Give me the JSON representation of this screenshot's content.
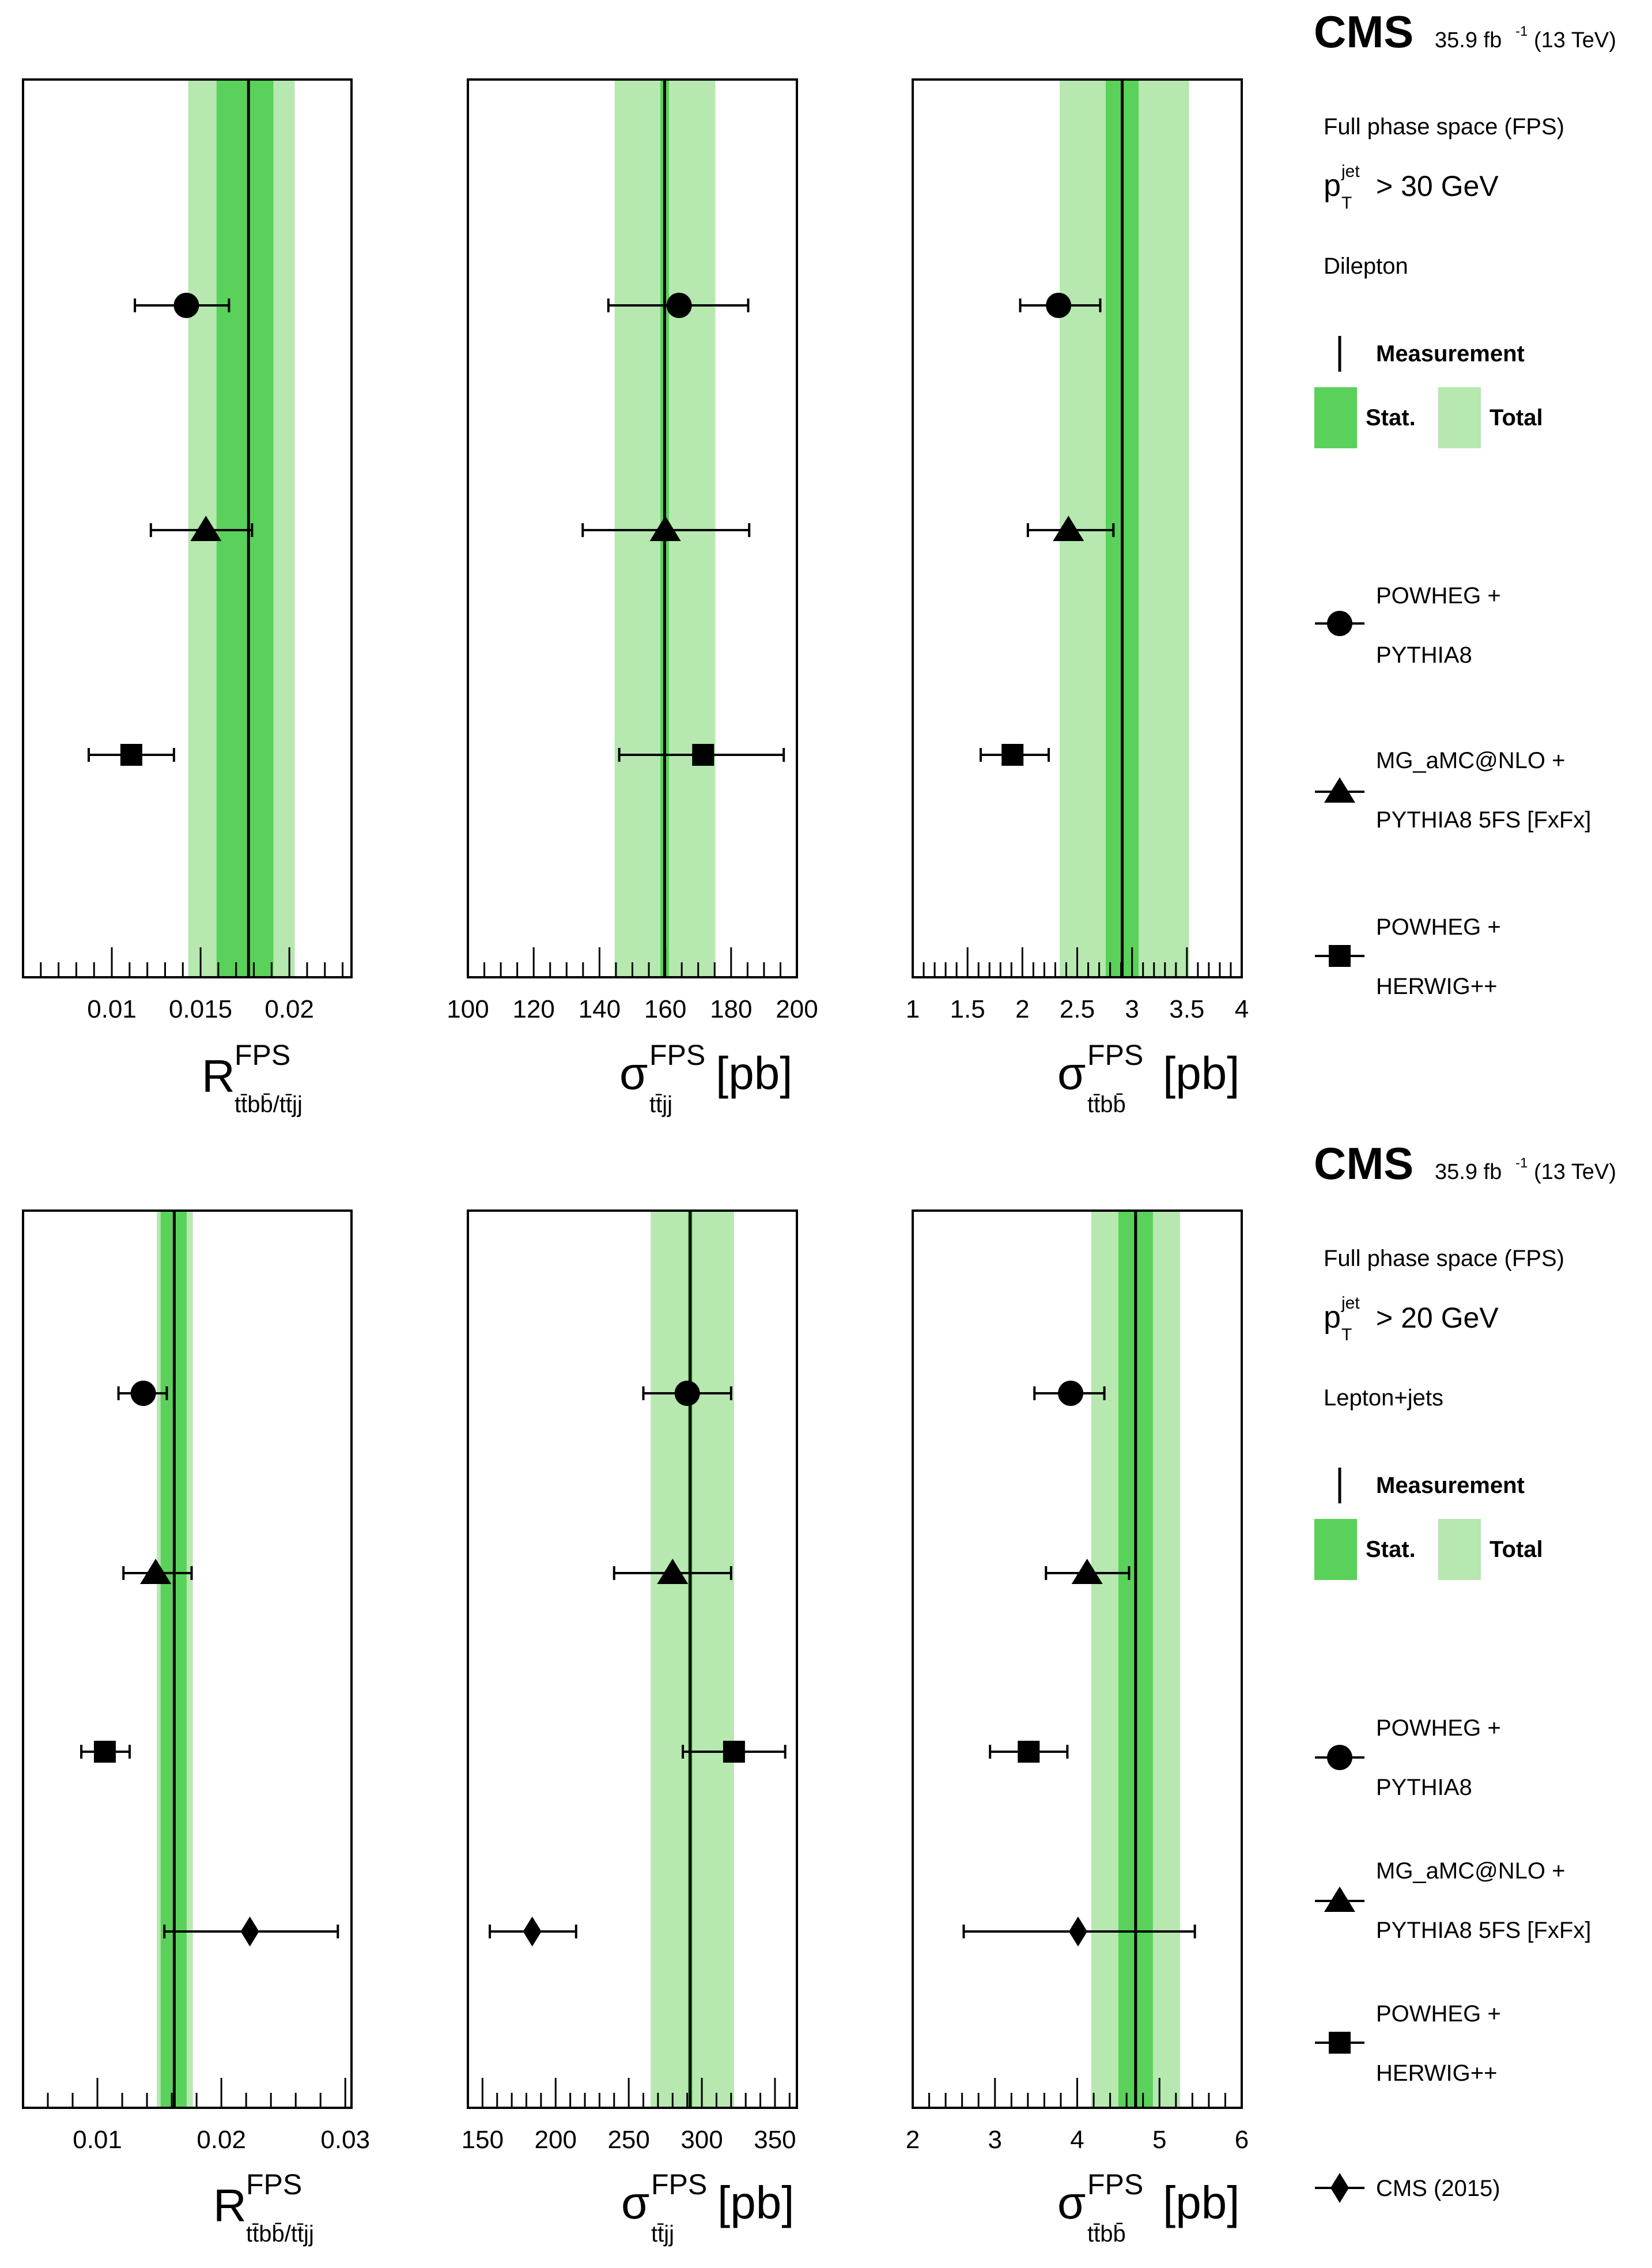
{
  "colors": {
    "stat_band": "#5ad15a",
    "total_band": "#b6e8b0",
    "ink": "#000000"
  },
  "legend_common": {
    "phase_space": "Full phase space (FPS)",
    "pt_symbol": "p",
    "pt_sup": "jet",
    "pt_sub": "T",
    "measurement": "Measurement",
    "stat": "Stat.",
    "total": "Total",
    "powheg_pythia_l1": "POWHEG +",
    "powheg_pythia_l2": "PYTHIA8",
    "mg_l1": "MG_aMC@NLO +",
    "mg_l2": "PYTHIA8 5FS [FxFx]",
    "powheg_herwig_l1": "POWHEG +",
    "powheg_herwig_l2": "HERWIG++",
    "cms2015": "CMS (2015)"
  },
  "top": {
    "cms": "CMS",
    "lumi": "35.9 fb",
    "lumi_exp": "-1",
    "energy": "(13 TeV)",
    "pt_cut": "> 30 GeV",
    "channel": "Dilepton"
  },
  "bottom": {
    "cms": "CMS",
    "lumi": "35.9 fb",
    "lumi_exp": "-1",
    "energy": "(13 TeV)",
    "pt_cut": "> 20 GeV",
    "channel": "Lepton+jets"
  },
  "axis_titles": {
    "ratio_main": "R",
    "sigma_main": "σ",
    "sup": "FPS",
    "ratio_sub": "tt̄bb̄/tt̄jj",
    "sigma_ttjj_sub": "tt̄jj",
    "sigma_ttbb_sub": "tt̄bb̄",
    "unit": "[pb]"
  },
  "chart_data": [
    {
      "id": "top-ratio",
      "type": "scatter",
      "title": "Dilepton R ttbb/ttjj",
      "xlim": [
        0.005,
        0.0235
      ],
      "major_ticks": [
        0.01,
        0.015,
        0.02
      ],
      "minor_step": 0.001,
      "tick_labels": [
        "0.01",
        "0.015",
        "0.02"
      ],
      "measurement": 0.0177,
      "stat": [
        0.0159,
        0.0191
      ],
      "total": [
        0.0143,
        0.0203
      ],
      "points": [
        {
          "name": "POWHEG + PYTHIA8",
          "marker": "circle",
          "value": 0.0142,
          "err": [
            0.0113,
            0.0166
          ]
        },
        {
          "name": "MG_aMC@NLO + PYTHIA8 5FS [FxFx]",
          "marker": "triangle",
          "value": 0.0153,
          "err": [
            0.0122,
            0.0179
          ]
        },
        {
          "name": "POWHEG + HERWIG++",
          "marker": "square",
          "value": 0.0111,
          "err": [
            0.0087,
            0.0135
          ]
        }
      ]
    },
    {
      "id": "top-ttjj",
      "type": "scatter",
      "title": "Dilepton sigma ttjj",
      "xlim": [
        100,
        200
      ],
      "major_ticks": [
        100,
        120,
        140,
        160,
        180,
        200
      ],
      "minor_step": 5,
      "tick_labels": [
        "100",
        "120",
        "140",
        "160",
        "180",
        "200"
      ],
      "measurement": 159.8,
      "stat": [
        158.5,
        161.1
      ],
      "total": [
        144.6,
        175.2
      ],
      "points": [
        {
          "name": "POWHEG + PYTHIA8",
          "marker": "circle",
          "value": 164.2,
          "err": [
            142.7,
            185.2
          ]
        },
        {
          "name": "MG_aMC@NLO + PYTHIA8 5FS [FxFx]",
          "marker": "triangle",
          "value": 160.0,
          "err": [
            134.9,
            185.5
          ]
        },
        {
          "name": "POWHEG + HERWIG++",
          "marker": "square",
          "value": 171.5,
          "err": [
            146.0,
            196.0
          ]
        }
      ]
    },
    {
      "id": "top-ttbb",
      "type": "scatter",
      "title": "Dilepton sigma ttbb",
      "xlim": [
        1,
        4
      ],
      "major_ticks": [
        1,
        1.5,
        2,
        2.5,
        3,
        3.5,
        4
      ],
      "minor_step": 0.1,
      "tick_labels": [
        "1",
        "1.5",
        "2",
        "2.5",
        "3",
        "3.5",
        "4"
      ],
      "measurement": 2.91,
      "stat": [
        2.76,
        3.06
      ],
      "total": [
        2.34,
        3.52
      ],
      "points": [
        {
          "name": "POWHEG + PYTHIA8",
          "marker": "circle",
          "value": 2.33,
          "err": [
            1.98,
            2.71
          ]
        },
        {
          "name": "MG_aMC@NLO + PYTHIA8 5FS [FxFx]",
          "marker": "triangle",
          "value": 2.42,
          "err": [
            2.05,
            2.83
          ]
        },
        {
          "name": "POWHEG + HERWIG++",
          "marker": "square",
          "value": 1.91,
          "err": [
            1.62,
            2.24
          ]
        }
      ]
    },
    {
      "id": "bot-ratio",
      "type": "scatter",
      "title": "Lepton+jets R ttbb/ttjj",
      "xlim": [
        0.004,
        0.0305
      ],
      "major_ticks": [
        0.01,
        0.02,
        0.03
      ],
      "minor_step": 0.002,
      "tick_labels": [
        "0.01",
        "0.02",
        "0.03"
      ],
      "measurement": 0.0162,
      "stat": [
        0.0151,
        0.0172
      ],
      "total": [
        0.0148,
        0.0177
      ],
      "points": [
        {
          "name": "POWHEG + PYTHIA8",
          "marker": "circle",
          "value": 0.0137,
          "err": [
            0.0117,
            0.0156
          ]
        },
        {
          "name": "MG_aMC@NLO + PYTHIA8 5FS [FxFx]",
          "marker": "triangle",
          "value": 0.0147,
          "err": [
            0.0121,
            0.0176
          ]
        },
        {
          "name": "POWHEG + HERWIG++",
          "marker": "square",
          "value": 0.0106,
          "err": [
            0.0087,
            0.0126
          ]
        },
        {
          "name": "CMS (2015)",
          "marker": "diamond",
          "value": 0.0223,
          "err": [
            0.0154,
            0.0294
          ]
        }
      ]
    },
    {
      "id": "bot-ttjj",
      "type": "scatter",
      "title": "Lepton+jets sigma ttjj",
      "xlim": [
        140,
        365
      ],
      "major_ticks": [
        150,
        200,
        250,
        300,
        350
      ],
      "minor_step": 10,
      "tick_labels": [
        "150",
        "200",
        "250",
        "300",
        "350"
      ],
      "measurement": 292.0,
      "stat": [
        290.5,
        293.5
      ],
      "total": [
        265.0,
        322.0
      ],
      "points": [
        {
          "name": "POWHEG + PYTHIA8",
          "marker": "circle",
          "value": 290.0,
          "err": [
            260.0,
            320.0
          ]
        },
        {
          "name": "MG_aMC@NLO + PYTHIA8 5FS [FxFx]",
          "marker": "triangle",
          "value": 280.0,
          "err": [
            240.0,
            320.0
          ]
        },
        {
          "name": "POWHEG + HERWIG++",
          "marker": "square",
          "value": 322.0,
          "err": [
            287.0,
            357.0
          ]
        },
        {
          "name": "CMS (2015)",
          "marker": "diamond",
          "value": 184.0,
          "err": [
            155.0,
            214.0
          ]
        }
      ]
    },
    {
      "id": "bot-ttbb",
      "type": "scatter",
      "title": "Lepton+jets sigma ttbb",
      "xlim": [
        2,
        6
      ],
      "major_ticks": [
        2,
        3,
        4,
        5,
        6
      ],
      "minor_step": 0.2,
      "tick_labels": [
        "2",
        "3",
        "4",
        "5",
        "6"
      ],
      "measurement": 4.71,
      "stat": [
        4.5,
        4.92
      ],
      "total": [
        4.17,
        5.25
      ],
      "points": [
        {
          "name": "POWHEG + PYTHIA8",
          "marker": "circle",
          "value": 3.92,
          "err": [
            3.48,
            4.33
          ]
        },
        {
          "name": "MG_aMC@NLO + PYTHIA8 5FS [FxFx]",
          "marker": "triangle",
          "value": 4.12,
          "err": [
            3.62,
            4.63
          ]
        },
        {
          "name": "POWHEG + HERWIG++",
          "marker": "square",
          "value": 3.41,
          "err": [
            2.94,
            3.88
          ]
        },
        {
          "name": "CMS (2015)",
          "marker": "diamond",
          "value": 4.01,
          "err": [
            2.62,
            5.43
          ]
        }
      ]
    }
  ]
}
